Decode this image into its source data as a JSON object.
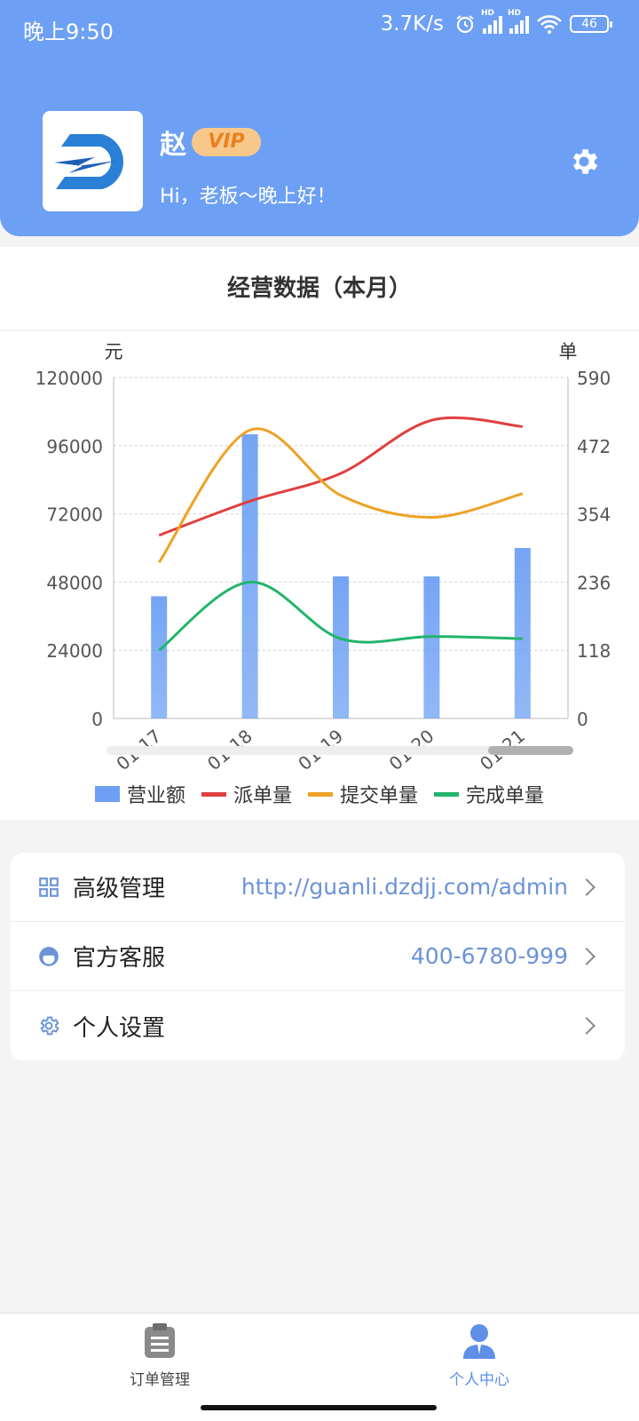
{
  "status_bar": {
    "time": "晚上9:50",
    "network_speed": "3.7K/s",
    "hd1": "HD",
    "hd2": "HD",
    "battery": "46"
  },
  "profile": {
    "name": "赵",
    "vip_label": "VIP",
    "greeting": "Hi，老板～晚上好！",
    "settings_icon": "gear-icon"
  },
  "section": {
    "title": "经营数据（本月）"
  },
  "chart_data": {
    "type": "bar",
    "title": "",
    "categories": [
      "01-17",
      "01-18",
      "01-19",
      "01-20",
      "01-21"
    ],
    "left_axis": {
      "label": "元",
      "ticks": [
        "120000",
        "96000",
        "72000",
        "48000",
        "24000",
        "0"
      ],
      "range": [
        0,
        120000
      ]
    },
    "right_axis": {
      "label": "单",
      "ticks": [
        "590",
        "472",
        "354",
        "236",
        "118",
        "0"
      ],
      "range": [
        0,
        590
      ]
    },
    "grid": true,
    "legend_position": "bottom",
    "series": [
      {
        "name": "营业额",
        "type": "bar",
        "axis": "left",
        "color": "#6da0f4",
        "values": [
          43000,
          100000,
          50000,
          50000,
          60000
        ]
      },
      {
        "name": "派单量",
        "type": "line",
        "axis": "right",
        "color": "#e0403f",
        "values": [
          317,
          376,
          424,
          516,
          505
        ]
      },
      {
        "name": "提交单量",
        "type": "line",
        "axis": "right",
        "color": "#eda225",
        "values": [
          270,
          499,
          386,
          348,
          389
        ]
      },
      {
        "name": "完成单量",
        "type": "line",
        "axis": "right",
        "color": "#21b56a",
        "values": [
          118,
          236,
          138,
          142,
          138
        ]
      }
    ]
  },
  "menu": [
    {
      "icon": "grid-icon",
      "label": "高级管理",
      "value": "http://guanli.dzdjj.com/admin"
    },
    {
      "icon": "service-icon",
      "label": "官方客服",
      "value": "400-6780-999"
    },
    {
      "icon": "gear-outline-icon",
      "label": "个人设置",
      "value": ""
    }
  ],
  "bottom_nav": [
    {
      "icon": "clipboard-icon",
      "label": "订单管理",
      "active": false
    },
    {
      "icon": "person-icon",
      "label": "个人中心",
      "active": true
    }
  ]
}
